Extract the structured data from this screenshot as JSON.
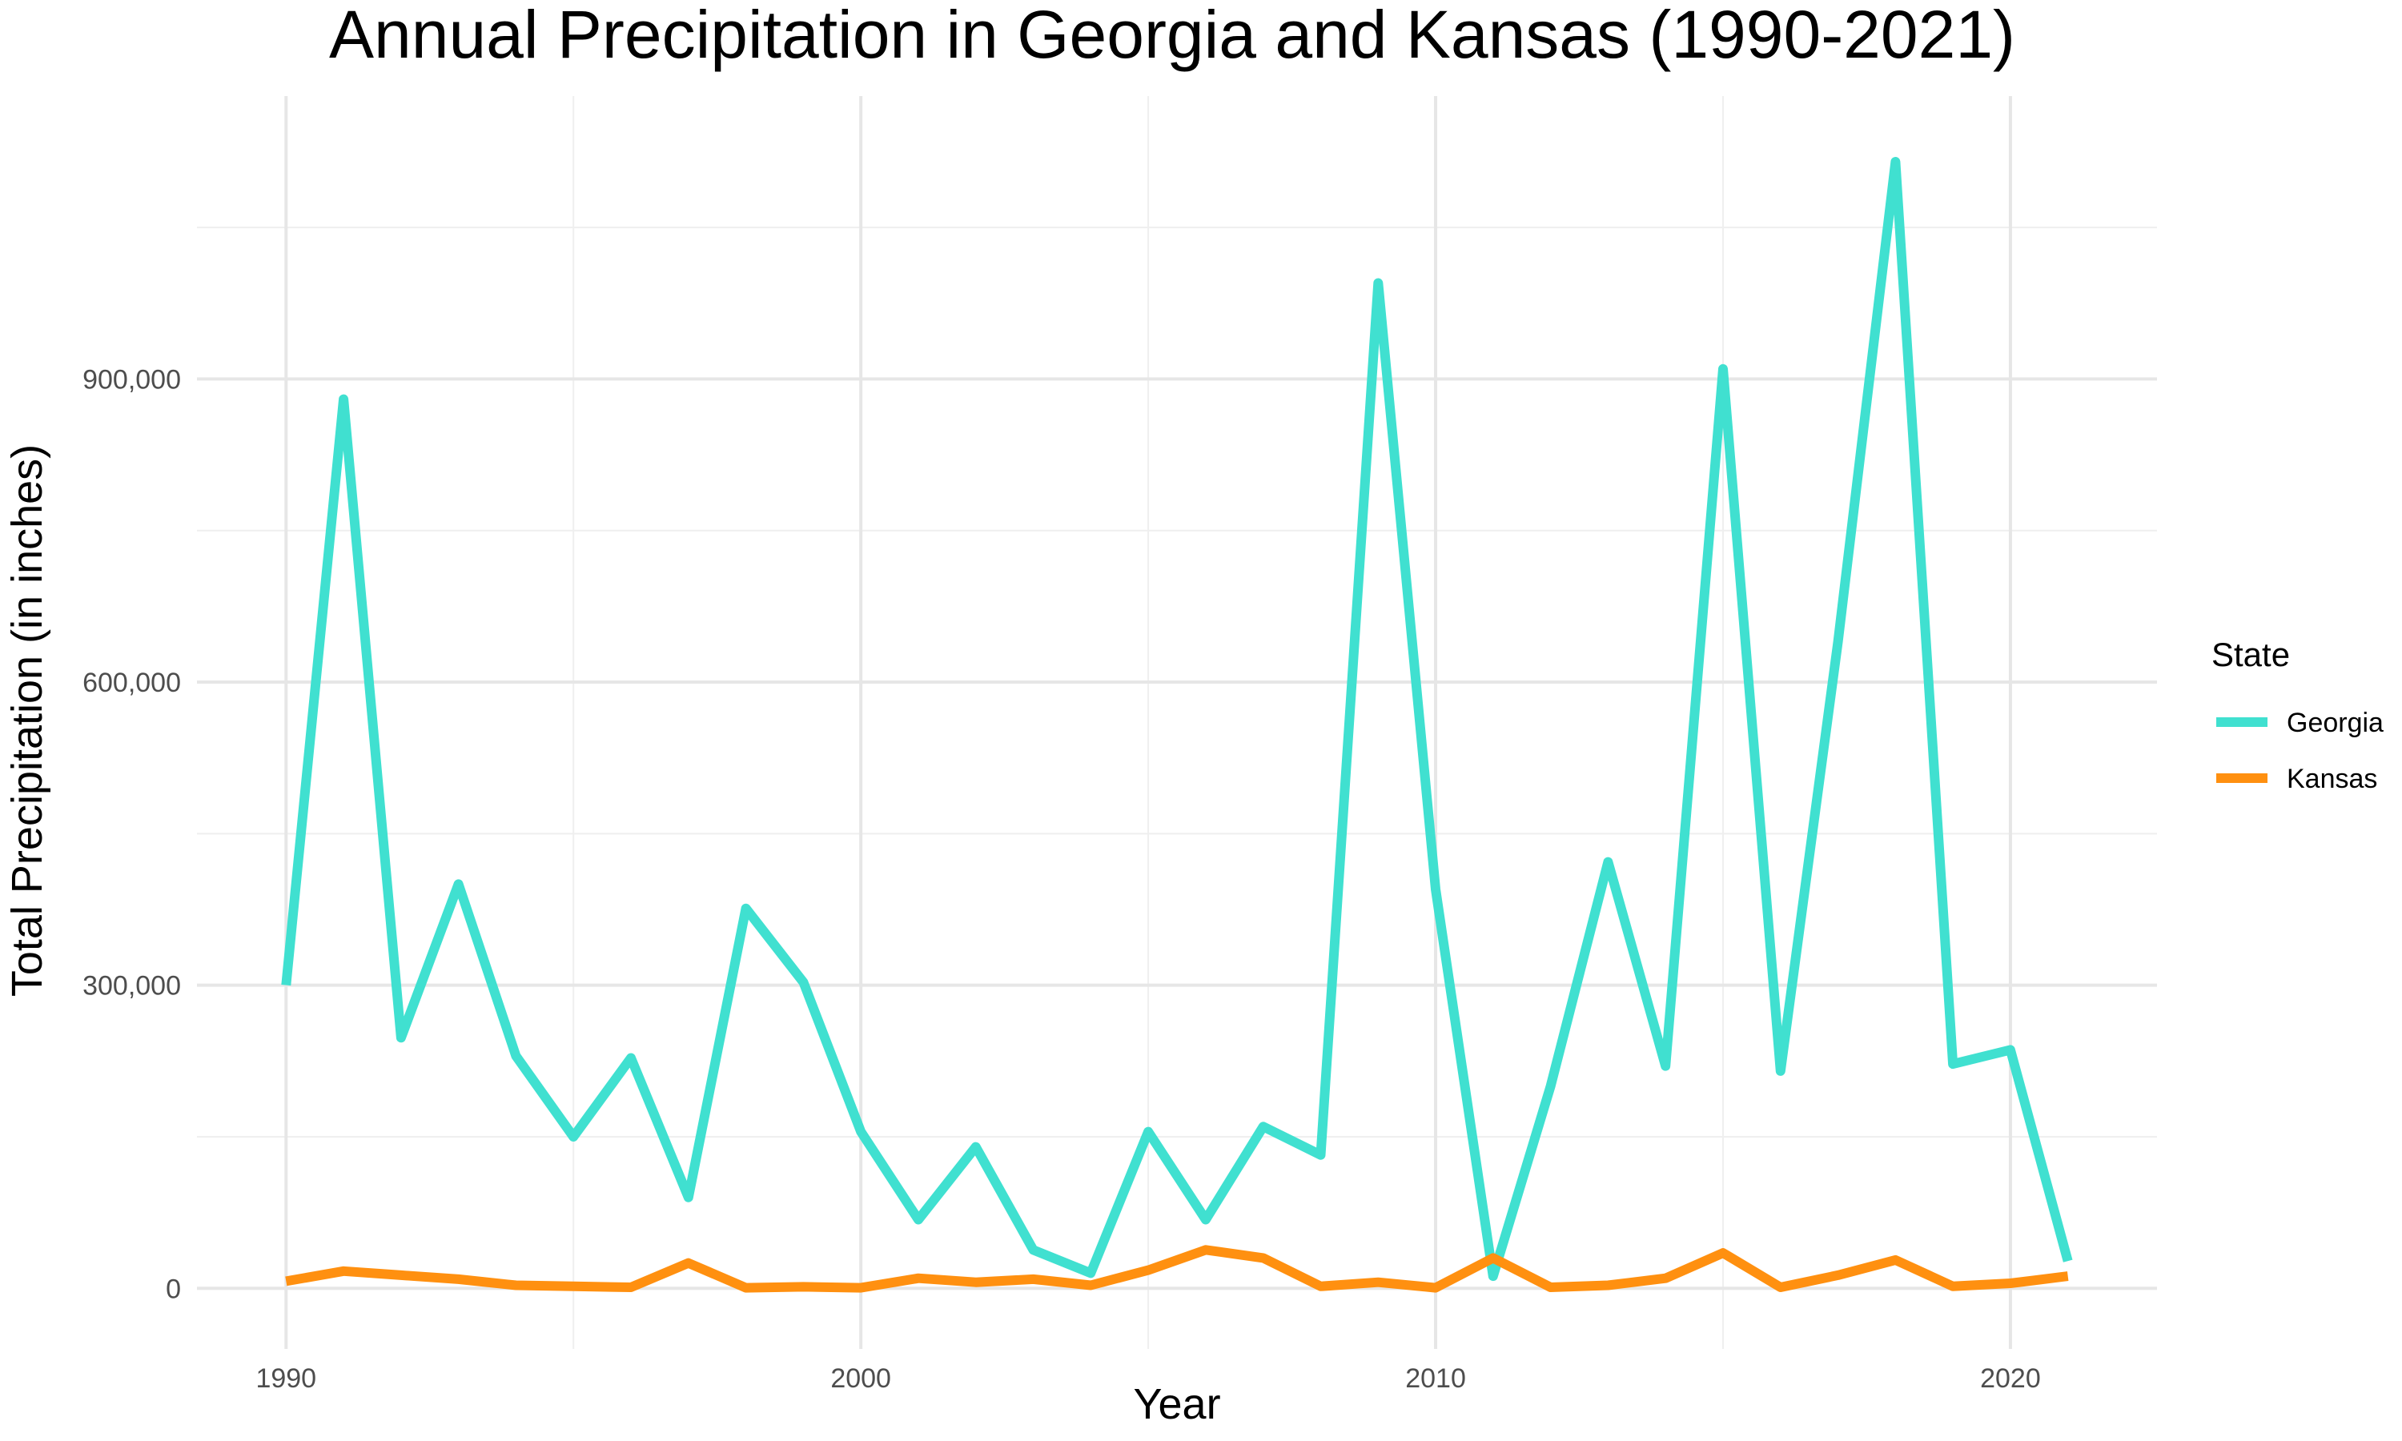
{
  "chart_data": {
    "type": "line",
    "title": "Annual Precipitation in Georgia and Kansas (1990-2021)",
    "xlabel": "Year",
    "ylabel": "Total Precipitation (in inches)",
    "x": [
      1990,
      1991,
      1992,
      1993,
      1994,
      1995,
      1996,
      1997,
      1998,
      1999,
      2000,
      2001,
      2002,
      2003,
      2004,
      2005,
      2006,
      2007,
      2008,
      2009,
      2010,
      2011,
      2012,
      2013,
      2014,
      2015,
      2016,
      2017,
      2018,
      2019,
      2020,
      2021
    ],
    "xlim": [
      1988.45,
      2022.55
    ],
    "ylim": [
      -60000,
      1180000
    ],
    "x_ticks": [
      1990,
      2000,
      2010,
      2020
    ],
    "x_tick_labels": [
      "1990",
      "2000",
      "2010",
      "2020"
    ],
    "x_minor_ticks": [
      1995,
      2005,
      2015
    ],
    "y_ticks": [
      0,
      300000,
      600000,
      900000
    ],
    "y_tick_labels": [
      "0",
      "300,000",
      "600,000",
      "900,000"
    ],
    "y_minor_ticks": [
      150000,
      450000,
      750000,
      1050000
    ],
    "grid": true,
    "legend": {
      "title": "State",
      "placement": "right"
    },
    "series": [
      {
        "name": "Georgia",
        "color": "#40E0D0",
        "values": [
          300000,
          880000,
          248000,
          400000,
          230000,
          150000,
          228000,
          90000,
          376000,
          303000,
          155000,
          68000,
          140000,
          38000,
          15000,
          155000,
          68000,
          160000,
          132000,
          995000,
          395000,
          12000,
          200000,
          422000,
          220000,
          910000,
          215000,
          640000,
          1115000,
          222000,
          236000,
          27000
        ]
      },
      {
        "name": "Kansas",
        "color": "#FF9010",
        "values": [
          7000,
          17000,
          13000,
          9000,
          3000,
          2000,
          1000,
          25000,
          500,
          1500,
          500,
          10000,
          6000,
          9000,
          3000,
          18000,
          38000,
          30000,
          2000,
          6000,
          500,
          30000,
          1000,
          3000,
          10000,
          35000,
          1000,
          13000,
          28000,
          2000,
          5000,
          12000
        ]
      }
    ]
  }
}
